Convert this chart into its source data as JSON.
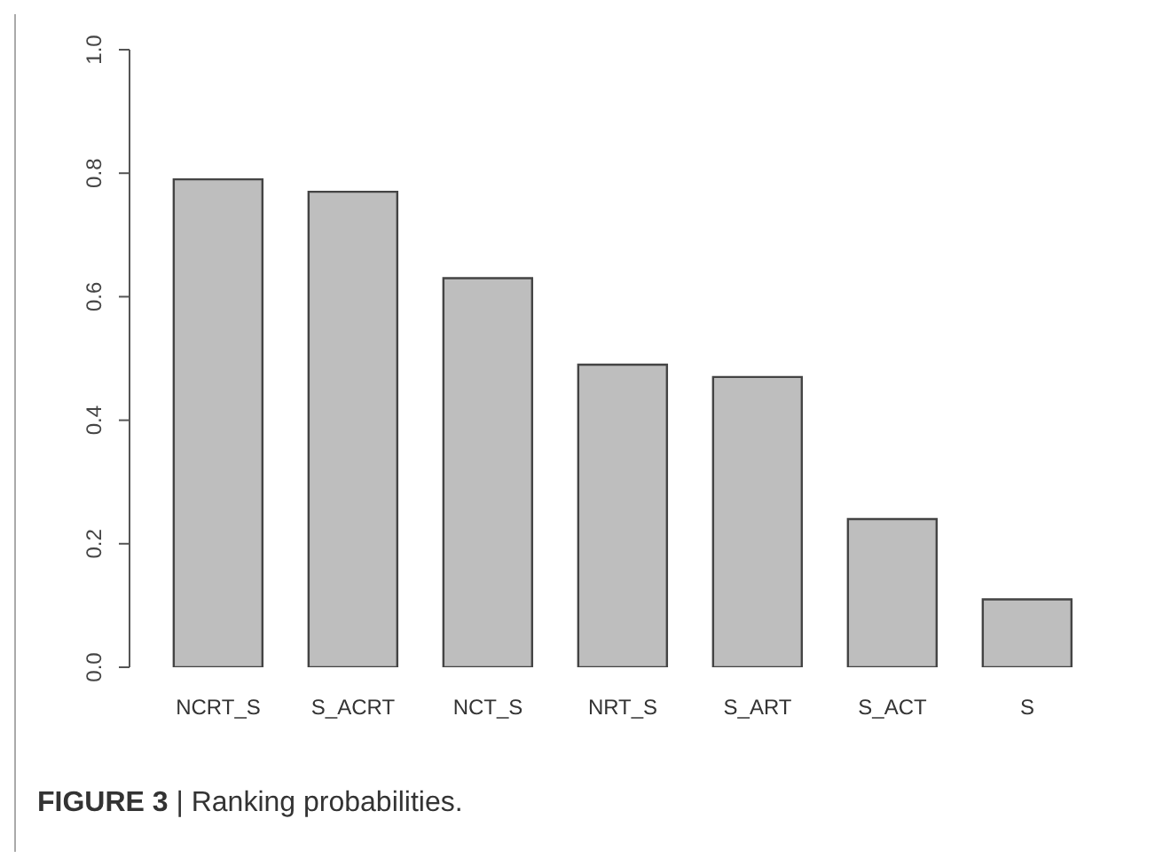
{
  "chart_data": {
    "type": "bar",
    "categories": [
      "NCRT_S",
      "S_ACRT",
      "NCT_S",
      "NRT_S",
      "S_ART",
      "S_ACT",
      "S"
    ],
    "values": [
      0.79,
      0.77,
      0.63,
      0.49,
      0.47,
      0.24,
      0.11
    ],
    "color": "#bebebe",
    "ylim": [
      0,
      1
    ],
    "yticks": [
      {
        "value": 0,
        "label": "0.0"
      },
      {
        "value": 0.2,
        "label": "0.2"
      },
      {
        "value": 0.4,
        "label": "0.4"
      },
      {
        "value": 0.6,
        "label": "0.6"
      },
      {
        "value": 0.8,
        "label": "0.8"
      },
      {
        "value": 1,
        "label": "1.0"
      }
    ],
    "grid": false,
    "annotations": [
      "FIGURE 3 | Ranking probabilities."
    ]
  }
}
